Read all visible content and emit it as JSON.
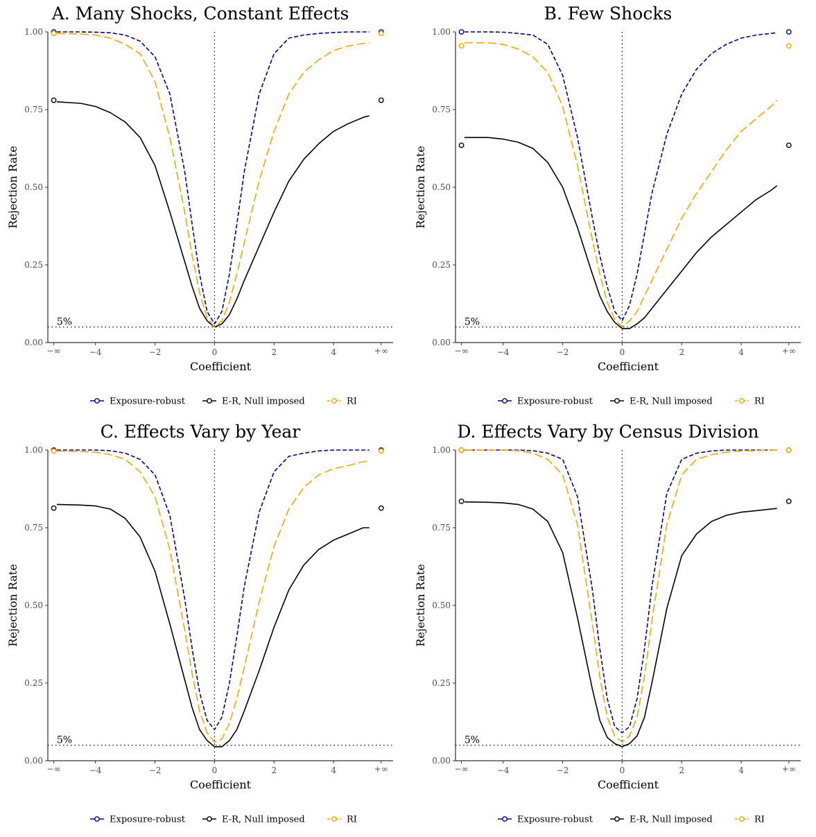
{
  "colors": {
    "exposure_robust": "#00008B",
    "er_null_imposed": "#000000",
    "ri": "#F5A500"
  },
  "legend": {
    "items": [
      {
        "label": "Exposure-robust",
        "key": "exposure_robust"
      },
      {
        "label": "E-R, Null imposed",
        "key": "er_null_imposed"
      },
      {
        "label": "RI",
        "key": "ri"
      }
    ]
  },
  "chart_data": [
    {
      "type": "line",
      "title": "A. Many Shocks, Constant Effects",
      "xlabel": "Coefficient",
      "ylabel": "Rejection Rate",
      "xlim": [
        -5.6,
        6
      ],
      "ylim": [
        0,
        1
      ],
      "x_ticks": [
        "-4",
        "-2",
        "0",
        "2",
        "4"
      ],
      "x_extremes": [
        "-∞",
        "+∞"
      ],
      "y_ticks": [
        "0.00",
        "0.25",
        "0.50",
        "0.75",
        "1.00"
      ],
      "reference_line": {
        "y": 0.05,
        "label": "5%"
      },
      "vline_x": 0,
      "x": [
        -5.3,
        -4.5,
        -4,
        -3.5,
        -3,
        -2.5,
        -2,
        -1.5,
        -1,
        -0.75,
        -0.5,
        -0.25,
        0,
        0.25,
        0.5,
        0.75,
        1,
        1.5,
        2,
        2.5,
        3,
        3.5,
        4,
        4.5,
        5,
        5.2
      ],
      "series": [
        {
          "name": "Exposure-robust",
          "key": "exposure_robust",
          "values": [
            1.0,
            1.0,
            0.999,
            0.997,
            0.99,
            0.97,
            0.92,
            0.8,
            0.55,
            0.38,
            0.22,
            0.1,
            0.06,
            0.1,
            0.22,
            0.38,
            0.55,
            0.8,
            0.93,
            0.98,
            0.99,
            0.995,
            0.998,
            1.0,
            1.0,
            1.0
          ],
          "extremes": [
            1.0,
            1.0
          ]
        },
        {
          "name": "E-R, Null imposed",
          "key": "er_null_imposed",
          "values": [
            0.775,
            0.77,
            0.76,
            0.74,
            0.71,
            0.66,
            0.57,
            0.42,
            0.26,
            0.18,
            0.11,
            0.07,
            0.05,
            0.06,
            0.09,
            0.14,
            0.2,
            0.31,
            0.42,
            0.52,
            0.59,
            0.64,
            0.68,
            0.705,
            0.725,
            0.73
          ],
          "extremes": [
            0.78,
            0.78
          ]
        },
        {
          "name": "RI",
          "key": "ri",
          "values": [
            0.995,
            0.993,
            0.99,
            0.98,
            0.96,
            0.93,
            0.84,
            0.66,
            0.42,
            0.28,
            0.16,
            0.08,
            0.05,
            0.07,
            0.13,
            0.22,
            0.32,
            0.52,
            0.68,
            0.8,
            0.87,
            0.91,
            0.94,
            0.955,
            0.963,
            0.965
          ],
          "extremes": [
            0.995,
            0.995
          ]
        }
      ]
    },
    {
      "type": "line",
      "title": "B. Few Shocks",
      "xlabel": "Coefficient",
      "ylabel": "Rejection Rate",
      "xlim": [
        -5.6,
        6
      ],
      "ylim": [
        0,
        1
      ],
      "x_ticks": [
        "-4",
        "-2",
        "0",
        "2",
        "4"
      ],
      "x_extremes": [
        "-∞",
        "+∞"
      ],
      "y_ticks": [
        "0.00",
        "0.25",
        "0.50",
        "0.75",
        "1.00"
      ],
      "reference_line": {
        "y": 0.05,
        "label": "5%"
      },
      "vline_x": 0,
      "x": [
        -5.3,
        -4.5,
        -4,
        -3.5,
        -3,
        -2.5,
        -2,
        -1.5,
        -1,
        -0.75,
        -0.5,
        -0.25,
        0,
        0.25,
        0.5,
        0.75,
        1,
        1.5,
        2,
        2.5,
        3,
        3.5,
        4,
        4.5,
        5,
        5.2
      ],
      "series": [
        {
          "name": "Exposure-robust",
          "key": "exposure_robust",
          "values": [
            1.0,
            1.0,
            0.999,
            0.995,
            0.99,
            0.96,
            0.86,
            0.66,
            0.4,
            0.28,
            0.18,
            0.1,
            0.07,
            0.12,
            0.22,
            0.35,
            0.48,
            0.67,
            0.8,
            0.88,
            0.93,
            0.96,
            0.98,
            0.99,
            0.995,
            0.997
          ],
          "extremes": [
            1.0,
            1.0
          ]
        },
        {
          "name": "E-R, Null imposed",
          "key": "er_null_imposed",
          "values": [
            0.66,
            0.66,
            0.655,
            0.645,
            0.625,
            0.58,
            0.5,
            0.37,
            0.22,
            0.15,
            0.1,
            0.065,
            0.045,
            0.045,
            0.06,
            0.08,
            0.11,
            0.17,
            0.23,
            0.29,
            0.34,
            0.38,
            0.42,
            0.46,
            0.49,
            0.505
          ],
          "extremes": [
            0.635,
            0.635
          ]
        },
        {
          "name": "RI",
          "key": "ri",
          "values": [
            0.965,
            0.965,
            0.96,
            0.945,
            0.92,
            0.87,
            0.76,
            0.57,
            0.33,
            0.22,
            0.13,
            0.075,
            0.05,
            0.07,
            0.1,
            0.15,
            0.2,
            0.3,
            0.4,
            0.48,
            0.55,
            0.62,
            0.68,
            0.72,
            0.76,
            0.78
          ],
          "extremes": [
            0.955,
            0.955
          ]
        }
      ]
    },
    {
      "type": "line",
      "title": "C. Effects Vary by Year",
      "xlabel": "Coefficient",
      "ylabel": "Rejection Rate",
      "xlim": [
        -5.6,
        6
      ],
      "ylim": [
        0,
        1
      ],
      "x_ticks": [
        "-4",
        "-2",
        "0",
        "2",
        "4"
      ],
      "x_extremes": [
        "-∞",
        "+∞"
      ],
      "y_ticks": [
        "0.00",
        "0.25",
        "0.50",
        "0.75",
        "1.00"
      ],
      "reference_line": {
        "y": 0.05,
        "label": "5%"
      },
      "vline_x": 0,
      "x": [
        -5.3,
        -4.5,
        -4,
        -3.5,
        -3,
        -2.5,
        -2,
        -1.5,
        -1,
        -0.75,
        -0.5,
        -0.25,
        0,
        0.25,
        0.5,
        0.75,
        1,
        1.5,
        2,
        2.5,
        3,
        3.5,
        4,
        4.5,
        5,
        5.2
      ],
      "series": [
        {
          "name": "Exposure-robust",
          "key": "exposure_robust",
          "values": [
            1.0,
            1.0,
            1.0,
            0.998,
            0.99,
            0.97,
            0.92,
            0.79,
            0.52,
            0.36,
            0.22,
            0.13,
            0.1,
            0.14,
            0.25,
            0.4,
            0.56,
            0.8,
            0.93,
            0.98,
            0.99,
            0.997,
            1.0,
            1.0,
            1.0,
            1.0
          ],
          "extremes": [
            1.0,
            1.0
          ]
        },
        {
          "name": "E-R, Null imposed",
          "key": "er_null_imposed",
          "values": [
            0.825,
            0.823,
            0.82,
            0.81,
            0.78,
            0.72,
            0.61,
            0.44,
            0.26,
            0.17,
            0.1,
            0.065,
            0.045,
            0.045,
            0.065,
            0.1,
            0.16,
            0.29,
            0.43,
            0.55,
            0.63,
            0.68,
            0.71,
            0.73,
            0.75,
            0.75
          ],
          "extremes": [
            0.813,
            0.813
          ]
        },
        {
          "name": "RI",
          "key": "ri",
          "values": [
            0.997,
            0.995,
            0.993,
            0.985,
            0.97,
            0.93,
            0.85,
            0.68,
            0.42,
            0.28,
            0.16,
            0.09,
            0.06,
            0.07,
            0.12,
            0.2,
            0.3,
            0.51,
            0.69,
            0.81,
            0.88,
            0.92,
            0.94,
            0.95,
            0.963,
            0.965
          ],
          "extremes": [
            0.997,
            0.997
          ]
        }
      ]
    },
    {
      "type": "line",
      "title": "D. Effects Vary by Census Division",
      "xlabel": "Coefficient",
      "ylabel": "Rejection Rate",
      "xlim": [
        -5.6,
        6
      ],
      "ylim": [
        0,
        1
      ],
      "x_ticks": [
        "-4",
        "-2",
        "0",
        "2",
        "4"
      ],
      "x_extremes": [
        "-∞",
        "+∞"
      ],
      "y_ticks": [
        "0.00",
        "0.25",
        "0.50",
        "0.75",
        "1.00"
      ],
      "reference_line": {
        "y": 0.05,
        "label": "5%"
      },
      "vline_x": 0,
      "x": [
        -5.3,
        -4.5,
        -4,
        -3.5,
        -3,
        -2.5,
        -2,
        -1.5,
        -1,
        -0.75,
        -0.5,
        -0.25,
        0,
        0.25,
        0.5,
        0.75,
        1,
        1.5,
        2,
        2.5,
        3,
        3.5,
        4,
        4.5,
        5,
        5.2
      ],
      "series": [
        {
          "name": "Exposure-robust",
          "key": "exposure_robust",
          "values": [
            1.0,
            1.0,
            1.0,
            1.0,
            0.998,
            0.99,
            0.97,
            0.85,
            0.55,
            0.36,
            0.2,
            0.11,
            0.09,
            0.11,
            0.2,
            0.36,
            0.56,
            0.86,
            0.97,
            0.99,
            0.997,
            1.0,
            1.0,
            1.0,
            1.0,
            1.0
          ],
          "extremes": [
            1.0,
            1.0
          ]
        },
        {
          "name": "E-R, Null imposed",
          "key": "er_null_imposed",
          "values": [
            0.833,
            0.832,
            0.83,
            0.825,
            0.81,
            0.77,
            0.67,
            0.46,
            0.23,
            0.13,
            0.075,
            0.055,
            0.045,
            0.055,
            0.08,
            0.14,
            0.25,
            0.49,
            0.66,
            0.73,
            0.77,
            0.79,
            0.8,
            0.805,
            0.81,
            0.812
          ],
          "extremes": [
            0.835,
            0.835
          ]
        },
        {
          "name": "RI",
          "key": "ri",
          "values": [
            1.0,
            1.0,
            1.0,
            0.998,
            0.99,
            0.97,
            0.92,
            0.76,
            0.44,
            0.27,
            0.14,
            0.08,
            0.06,
            0.08,
            0.14,
            0.27,
            0.45,
            0.76,
            0.92,
            0.97,
            0.985,
            0.993,
            0.997,
            0.998,
            1.0,
            1.0
          ],
          "extremes": [
            1.0,
            1.0
          ]
        }
      ]
    }
  ]
}
